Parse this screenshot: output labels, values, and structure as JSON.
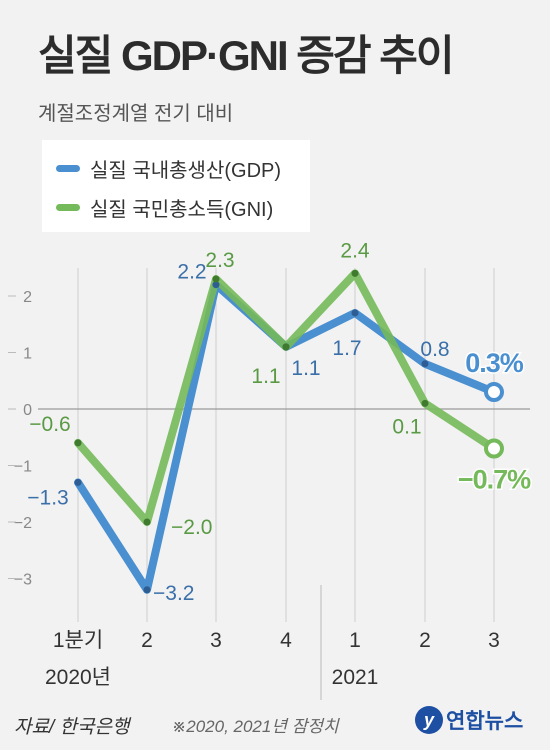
{
  "header": {
    "title": "실질 GDP·GNI 증감 추이",
    "subtitle": "계절조정계열 전기 대비"
  },
  "footer": {
    "source": "자료/ 한국은행",
    "note": "※2020, 2021년 잠정치",
    "credit": "연합뉴스"
  },
  "colors": {
    "gdp": "#4a8fd0",
    "gni": "#74b95a",
    "gni_label": "#5a9a44",
    "gdp_label": "#3b6fa8"
  },
  "chart_data": {
    "type": "line",
    "title": "실질 GDP·GNI 증감 추이",
    "subtitle": "계절조정계열 전기 대비",
    "categories": [
      "1분기",
      "2",
      "3",
      "4",
      "1",
      "2",
      "3"
    ],
    "year_labels": [
      "2020년",
      "2021"
    ],
    "ylim": [
      -3.8,
      2.8
    ],
    "yticks": [
      2,
      1,
      0,
      -1,
      -2,
      -3
    ],
    "grid": false,
    "legend_position": "top-left",
    "series": [
      {
        "name": "실질 국내총생산(GDP)",
        "color": "#4a8fd0",
        "values": [
          -1.3,
          -3.2,
          2.2,
          1.1,
          1.7,
          0.8,
          0.3
        ],
        "labels": [
          "−1.3",
          "−3.2",
          "2.2",
          "1.1",
          "1.7",
          "0.8",
          "0.3%"
        ]
      },
      {
        "name": "실질 국민총소득(GNI)",
        "color": "#74b95a",
        "values": [
          -0.6,
          -2.0,
          2.3,
          1.1,
          2.4,
          0.1,
          -0.7
        ],
        "labels": [
          "−0.6",
          "−2.0",
          "2.3",
          "1.1",
          "2.4",
          "0.1",
          "−0.7%"
        ]
      }
    ]
  }
}
